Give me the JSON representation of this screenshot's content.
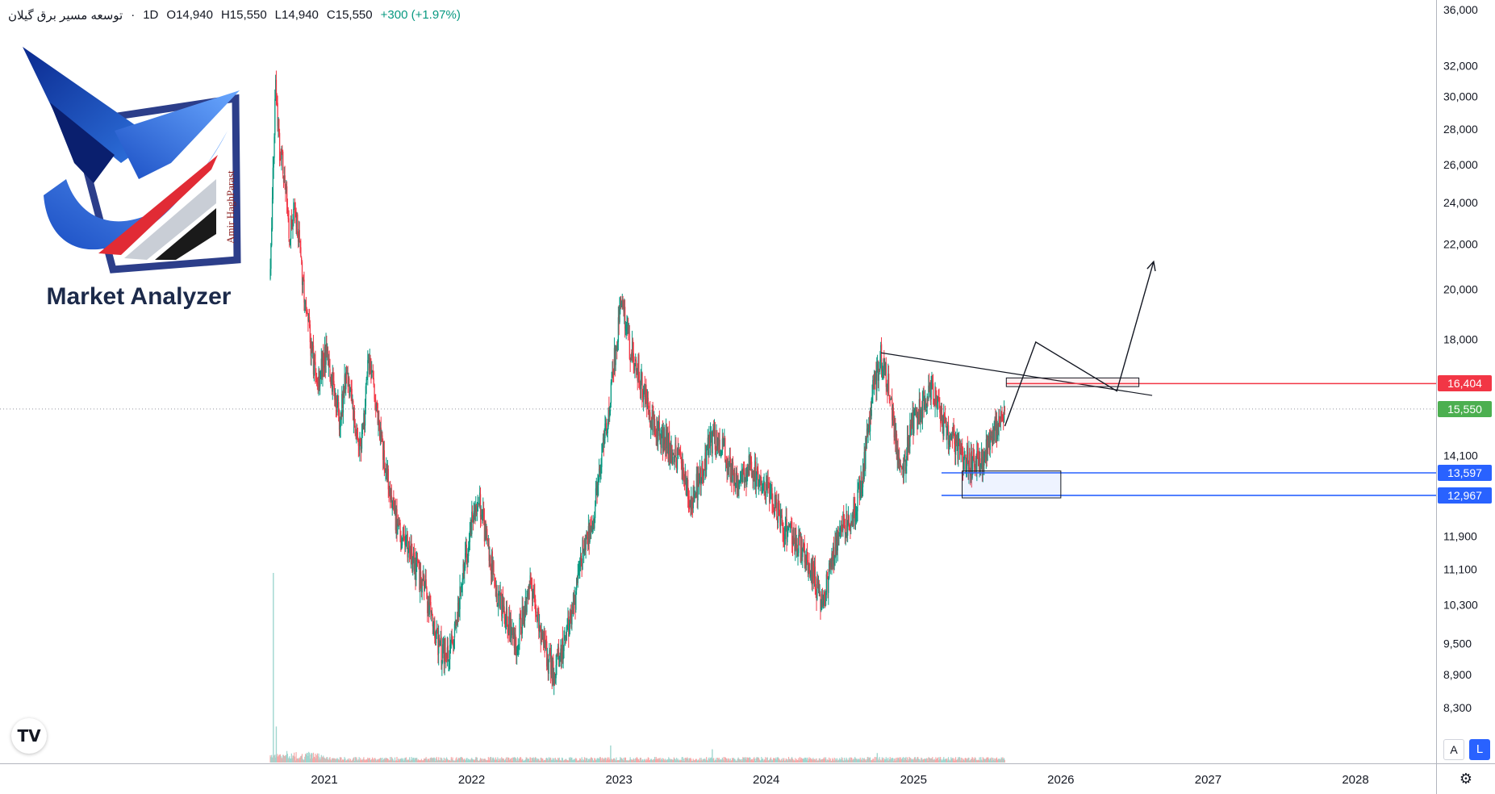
{
  "legend": {
    "symbol": "توسعه مسیر برق گیلان",
    "separator": "·",
    "interval": "1D",
    "open": "O14,940",
    "high": "H15,550",
    "low": "L14,940",
    "close": "C15,550",
    "change": "+300 (+1.97%)"
  },
  "logo": {
    "title": "Market Analyzer",
    "signature": "Amir HaghParast"
  },
  "price_badges": {
    "resistance": "16,404",
    "last": "15,550",
    "support_top": "13,597",
    "support_bottom": "12,967"
  },
  "colors": {
    "up": "#089981",
    "down": "#f23645",
    "resistance": "#f23645",
    "support": "#2962ff",
    "last_price": "#4caf50",
    "volume_up": "#9fd6cf",
    "volume_down": "#f6a9a9"
  },
  "buttons": {
    "auto": "A",
    "log": "L",
    "settings_icon": "gear-icon"
  },
  "chart_data": {
    "type": "candlestick",
    "scale": "log",
    "interval": "1D",
    "y_ticks": [
      36000,
      32000,
      30000,
      28000,
      26000,
      24000,
      22000,
      20000,
      18000,
      14100,
      11900,
      11100,
      10300,
      9500,
      8900,
      8300
    ],
    "y_tick_labels": [
      "36,000",
      "32,000",
      "30,000",
      "28,000",
      "26,000",
      "24,000",
      "22,000",
      "20,000",
      "18,000",
      "14,100",
      "11,900",
      "11,100",
      "10,300",
      "9,500",
      "8,900",
      "8,300"
    ],
    "x_ticks": [
      "2021",
      "2022",
      "2023",
      "2024",
      "2025",
      "2026",
      "2027",
      "2028"
    ],
    "x_tick_values": [
      2021.0,
      2022.0,
      2023.0,
      2024.0,
      2025.0,
      2026.0,
      2027.0,
      2028.0
    ],
    "price_path": [
      [
        2020.63,
        20500
      ],
      [
        2020.66,
        29000
      ],
      [
        2020.67,
        31000
      ],
      [
        2020.69,
        27000
      ],
      [
        2020.72,
        25500
      ],
      [
        2020.76,
        22500
      ],
      [
        2020.8,
        23500
      ],
      [
        2020.85,
        20500
      ],
      [
        2020.9,
        18000
      ],
      [
        2020.95,
        16200
      ],
      [
        2021.0,
        17500
      ],
      [
        2021.05,
        16500
      ],
      [
        2021.1,
        15200
      ],
      [
        2021.15,
        17000
      ],
      [
        2021.2,
        15000
      ],
      [
        2021.25,
        14500
      ],
      [
        2021.3,
        17300
      ],
      [
        2021.35,
        15500
      ],
      [
        2021.42,
        13600
      ],
      [
        2021.5,
        12000
      ],
      [
        2021.6,
        11300
      ],
      [
        2021.7,
        10400
      ],
      [
        2021.78,
        9400
      ],
      [
        2021.85,
        9250
      ],
      [
        2021.92,
        10600
      ],
      [
        2022.0,
        12300
      ],
      [
        2022.05,
        12900
      ],
      [
        2022.1,
        11700
      ],
      [
        2022.2,
        10200
      ],
      [
        2022.3,
        9500
      ],
      [
        2022.4,
        10800
      ],
      [
        2022.5,
        9300
      ],
      [
        2022.55,
        8900
      ],
      [
        2022.62,
        9500
      ],
      [
        2022.7,
        10500
      ],
      [
        2022.75,
        11500
      ],
      [
        2022.82,
        12300
      ],
      [
        2022.87,
        13700
      ],
      [
        2022.92,
        15300
      ],
      [
        2022.97,
        17500
      ],
      [
        2023.02,
        19800
      ],
      [
        2023.06,
        17800
      ],
      [
        2023.12,
        17000
      ],
      [
        2023.22,
        15200
      ],
      [
        2023.32,
        14500
      ],
      [
        2023.42,
        13800
      ],
      [
        2023.48,
        12700
      ],
      [
        2023.55,
        13500
      ],
      [
        2023.62,
        14600
      ],
      [
        2023.7,
        14300
      ],
      [
        2023.8,
        13300
      ],
      [
        2023.9,
        13800
      ],
      [
        2024.0,
        13100
      ],
      [
        2024.1,
        12300
      ],
      [
        2024.2,
        11800
      ],
      [
        2024.28,
        11300
      ],
      [
        2024.38,
        10300
      ],
      [
        2024.45,
        11400
      ],
      [
        2024.52,
        12200
      ],
      [
        2024.6,
        12600
      ],
      [
        2024.66,
        13800
      ],
      [
        2024.72,
        16200
      ],
      [
        2024.78,
        17400
      ],
      [
        2024.83,
        16300
      ],
      [
        2024.88,
        14300
      ],
      [
        2024.93,
        13800
      ],
      [
        2024.98,
        15000
      ],
      [
        2025.05,
        15600
      ],
      [
        2025.12,
        16300
      ],
      [
        2025.18,
        15200
      ],
      [
        2025.25,
        14600
      ],
      [
        2025.32,
        14100
      ],
      [
        2025.4,
        13800
      ],
      [
        2025.47,
        14000
      ],
      [
        2025.55,
        14900
      ],
      [
        2025.62,
        15550
      ]
    ],
    "volume_spikes": [
      {
        "x": 2020.65,
        "v": 1.0
      },
      {
        "x": 2020.67,
        "v": 0.19
      },
      {
        "x": 2022.94,
        "v": 0.09
      },
      {
        "x": 2023.63,
        "v": 0.07
      },
      {
        "x": 2024.75,
        "v": 0.05
      }
    ],
    "lines": [
      {
        "name": "downtrend",
        "from": [
          2024.78,
          17500
        ],
        "to": [
          2026.62,
          16000
        ]
      },
      {
        "name": "support-upper",
        "price": 13597,
        "from_x": 2025.19
      },
      {
        "name": "support-lower",
        "price": 12967,
        "from_x": 2025.19
      },
      {
        "name": "resistance",
        "price": 16404,
        "from_x": 2025.63
      }
    ],
    "boxes": [
      {
        "name": "resistance-zone",
        "x0": 2025.63,
        "x1": 2026.53,
        "y0": 16300,
        "y1": 16600
      },
      {
        "name": "demand-zone",
        "x0": 2025.33,
        "x1": 2026.0,
        "y0": 12900,
        "y1": 13650
      }
    ],
    "projection": [
      [
        2025.62,
        15000
      ],
      [
        2025.83,
        17900
      ],
      [
        2026.38,
        16150
      ],
      [
        2026.63,
        21200
      ]
    ]
  }
}
